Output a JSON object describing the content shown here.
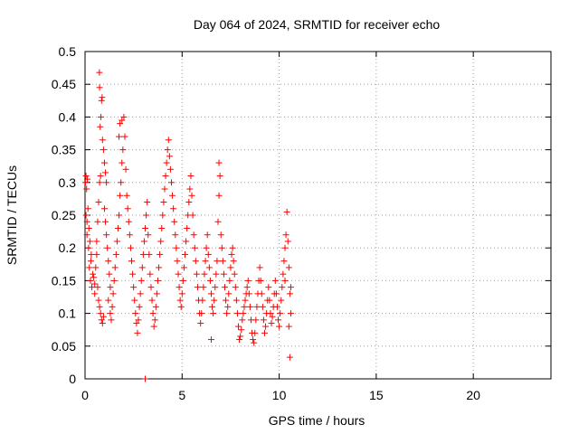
{
  "chart_data": {
    "type": "scatter",
    "title": "Day 064 of 2024, SRMTID for receiver echo",
    "xlabel": "GPS time / hours",
    "ylabel": "SRMTID / TECUs",
    "xlim": [
      0,
      24
    ],
    "ylim": [
      0,
      0.5
    ],
    "x_ticks": [
      0,
      5,
      10,
      15,
      20
    ],
    "x_tick_labels": [
      "0",
      "5",
      "10",
      "15",
      "20"
    ],
    "y_ticks": [
      0,
      0.05,
      0.1,
      0.15,
      0.2,
      0.25,
      0.3,
      0.35,
      0.4,
      0.45,
      0.5
    ],
    "y_tick_labels": [
      "0",
      "0.05",
      "0.1",
      "0.15",
      "0.2",
      "0.25",
      "0.3",
      "0.35",
      "0.4",
      "0.45",
      "0.5"
    ],
    "grid": true,
    "marker": "plus",
    "colors": {
      "series": "#ff0000",
      "grid": "#a0a0a0",
      "axis": "#000000"
    },
    "series": [
      {
        "name": "SRMTID",
        "points": [
          [
            0.02,
            0.3
          ],
          [
            0.05,
            0.31
          ],
          [
            0.08,
            0.29
          ],
          [
            0.12,
            0.305
          ],
          [
            0.05,
            0.25
          ],
          [
            0.1,
            0.24
          ],
          [
            0.15,
            0.26
          ],
          [
            0.2,
            0.23
          ],
          [
            0.1,
            0.22
          ],
          [
            0.18,
            0.2
          ],
          [
            0.25,
            0.21
          ],
          [
            0.3,
            0.18
          ],
          [
            0.22,
            0.17
          ],
          [
            0.28,
            0.15
          ],
          [
            0.35,
            0.14
          ],
          [
            0.4,
            0.16
          ],
          [
            0.32,
            0.19
          ],
          [
            0.45,
            0.155
          ],
          [
            0.5,
            0.145
          ],
          [
            0.55,
            0.17
          ],
          [
            0.6,
            0.19
          ],
          [
            0.5,
            0.13
          ],
          [
            0.65,
            0.14
          ],
          [
            0.7,
            0.12
          ],
          [
            0.75,
            0.11
          ],
          [
            0.8,
            0.1
          ],
          [
            0.85,
            0.09
          ],
          [
            0.9,
            0.085
          ],
          [
            0.95,
            0.095
          ],
          [
            0.6,
            0.21
          ],
          [
            0.65,
            0.24
          ],
          [
            0.7,
            0.27
          ],
          [
            0.75,
            0.3
          ],
          [
            0.8,
            0.31
          ],
          [
            0.78,
            0.385
          ],
          [
            0.82,
            0.4
          ],
          [
            0.85,
            0.425
          ],
          [
            0.88,
            0.43
          ],
          [
            0.75,
            0.445
          ],
          [
            0.74,
            0.468
          ],
          [
            0.9,
            0.365
          ],
          [
            0.95,
            0.35
          ],
          [
            1.0,
            0.33
          ],
          [
            1.05,
            0.315
          ],
          [
            1.1,
            0.3
          ],
          [
            1.0,
            0.26
          ],
          [
            1.05,
            0.24
          ],
          [
            1.1,
            0.22
          ],
          [
            1.15,
            0.2
          ],
          [
            1.2,
            0.18
          ],
          [
            1.25,
            0.16
          ],
          [
            1.3,
            0.14
          ],
          [
            1.2,
            0.12
          ],
          [
            1.3,
            0.1
          ],
          [
            1.35,
            0.09
          ],
          [
            1.4,
            0.11
          ],
          [
            1.45,
            0.13
          ],
          [
            1.5,
            0.15
          ],
          [
            1.55,
            0.17
          ],
          [
            1.6,
            0.19
          ],
          [
            1.65,
            0.21
          ],
          [
            1.7,
            0.23
          ],
          [
            1.75,
            0.25
          ],
          [
            1.8,
            0.28
          ],
          [
            1.85,
            0.3
          ],
          [
            1.9,
            0.33
          ],
          [
            1.95,
            0.35
          ],
          [
            1.75,
            0.37
          ],
          [
            1.8,
            0.39
          ],
          [
            1.9,
            0.395
          ],
          [
            2.0,
            0.4
          ],
          [
            2.05,
            0.37
          ],
          [
            2.1,
            0.32
          ],
          [
            2.15,
            0.28
          ],
          [
            2.2,
            0.26
          ],
          [
            2.25,
            0.24
          ],
          [
            2.3,
            0.22
          ],
          [
            2.35,
            0.2
          ],
          [
            2.4,
            0.18
          ],
          [
            2.45,
            0.16
          ],
          [
            2.5,
            0.14
          ],
          [
            2.55,
            0.12
          ],
          [
            2.6,
            0.1
          ],
          [
            2.65,
            0.085
          ],
          [
            2.7,
            0.07
          ],
          [
            2.75,
            0.09
          ],
          [
            2.8,
            0.11
          ],
          [
            2.85,
            0.13
          ],
          [
            2.9,
            0.15
          ],
          [
            2.95,
            0.17
          ],
          [
            3.0,
            0.19
          ],
          [
            3.05,
            0.21
          ],
          [
            3.1,
            0.23
          ],
          [
            3.15,
            0.25
          ],
          [
            3.2,
            0.27
          ],
          [
            3.25,
            0.22
          ],
          [
            3.3,
            0.19
          ],
          [
            3.35,
            0.16
          ],
          [
            3.4,
            0.14
          ],
          [
            3.45,
            0.12
          ],
          [
            3.5,
            0.1
          ],
          [
            3.55,
            0.08
          ],
          [
            3.6,
            0.09
          ],
          [
            3.65,
            0.11
          ],
          [
            3.7,
            0.13
          ],
          [
            3.75,
            0.15
          ],
          [
            3.8,
            0.17
          ],
          [
            3.85,
            0.19
          ],
          [
            3.9,
            0.21
          ],
          [
            3.95,
            0.23
          ],
          [
            4.0,
            0.25
          ],
          [
            4.05,
            0.27
          ],
          [
            4.1,
            0.29
          ],
          [
            4.15,
            0.31
          ],
          [
            4.2,
            0.33
          ],
          [
            4.25,
            0.35
          ],
          [
            4.3,
            0.365
          ],
          [
            4.35,
            0.34
          ],
          [
            4.4,
            0.32
          ],
          [
            4.45,
            0.3
          ],
          [
            4.5,
            0.28
          ],
          [
            4.55,
            0.26
          ],
          [
            4.6,
            0.24
          ],
          [
            4.65,
            0.22
          ],
          [
            4.7,
            0.2
          ],
          [
            4.75,
            0.18
          ],
          [
            4.8,
            0.16
          ],
          [
            4.85,
            0.14
          ],
          [
            4.9,
            0.12
          ],
          [
            4.95,
            0.11
          ],
          [
            5.0,
            0.13
          ],
          [
            5.05,
            0.15
          ],
          [
            5.1,
            0.17
          ],
          [
            5.15,
            0.19
          ],
          [
            5.2,
            0.21
          ],
          [
            5.25,
            0.23
          ],
          [
            5.3,
            0.25
          ],
          [
            5.35,
            0.27
          ],
          [
            5.4,
            0.29
          ],
          [
            5.45,
            0.31
          ],
          [
            5.5,
            0.28
          ],
          [
            5.55,
            0.25
          ],
          [
            5.6,
            0.22
          ],
          [
            5.65,
            0.2
          ],
          [
            5.7,
            0.18
          ],
          [
            5.75,
            0.16
          ],
          [
            5.8,
            0.14
          ],
          [
            5.85,
            0.12
          ],
          [
            5.9,
            0.1
          ],
          [
            5.95,
            0.085
          ],
          [
            6.0,
            0.1
          ],
          [
            6.05,
            0.12
          ],
          [
            6.1,
            0.14
          ],
          [
            6.15,
            0.16
          ],
          [
            6.2,
            0.18
          ],
          [
            6.25,
            0.2
          ],
          [
            6.3,
            0.22
          ],
          [
            6.35,
            0.19
          ],
          [
            6.4,
            0.17
          ],
          [
            6.45,
            0.15
          ],
          [
            6.5,
            0.13
          ],
          [
            6.55,
            0.11
          ],
          [
            6.5,
            0.06
          ],
          [
            6.6,
            0.1
          ],
          [
            6.65,
            0.12
          ],
          [
            6.7,
            0.14
          ],
          [
            6.75,
            0.16
          ],
          [
            6.8,
            0.18
          ],
          [
            6.85,
            0.24
          ],
          [
            6.9,
            0.28
          ],
          [
            6.95,
            0.31
          ],
          [
            6.9,
            0.33
          ],
          [
            7.0,
            0.22
          ],
          [
            7.05,
            0.2
          ],
          [
            7.1,
            0.18
          ],
          [
            7.15,
            0.16
          ],
          [
            7.2,
            0.14
          ],
          [
            7.25,
            0.12
          ],
          [
            7.3,
            0.1
          ],
          [
            7.35,
            0.11
          ],
          [
            7.4,
            0.13
          ],
          [
            7.45,
            0.15
          ],
          [
            7.5,
            0.17
          ],
          [
            7.55,
            0.19
          ],
          [
            7.6,
            0.2
          ],
          [
            7.65,
            0.18
          ],
          [
            7.7,
            0.16
          ],
          [
            7.75,
            0.14
          ],
          [
            7.8,
            0.12
          ],
          [
            7.85,
            0.1
          ],
          [
            7.9,
            0.08
          ],
          [
            7.95,
            0.06
          ],
          [
            8.0,
            0.065
          ],
          [
            8.05,
            0.075
          ],
          [
            8.1,
            0.09
          ],
          [
            8.15,
            0.1
          ],
          [
            8.2,
            0.11
          ],
          [
            8.25,
            0.12
          ],
          [
            8.3,
            0.13
          ],
          [
            8.35,
            0.14
          ],
          [
            8.4,
            0.15
          ],
          [
            8.45,
            0.13
          ],
          [
            8.5,
            0.11
          ],
          [
            8.55,
            0.09
          ],
          [
            8.6,
            0.07
          ],
          [
            8.65,
            0.06
          ],
          [
            8.7,
            0.055
          ],
          [
            8.75,
            0.07
          ],
          [
            8.8,
            0.09
          ],
          [
            8.85,
            0.11
          ],
          [
            8.9,
            0.13
          ],
          [
            8.95,
            0.15
          ],
          [
            9.0,
            0.17
          ],
          [
            9.05,
            0.15
          ],
          [
            9.1,
            0.13
          ],
          [
            9.15,
            0.11
          ],
          [
            9.2,
            0.09
          ],
          [
            9.25,
            0.07
          ],
          [
            9.3,
            0.08
          ],
          [
            9.35,
            0.1
          ],
          [
            9.4,
            0.12
          ],
          [
            9.45,
            0.14
          ],
          [
            9.5,
            0.12
          ],
          [
            9.55,
            0.1
          ],
          [
            9.6,
            0.085
          ],
          [
            9.65,
            0.095
          ],
          [
            9.7,
            0.11
          ],
          [
            9.75,
            0.13
          ],
          [
            9.8,
            0.15
          ],
          [
            9.85,
            0.13
          ],
          [
            9.9,
            0.11
          ],
          [
            9.95,
            0.09
          ],
          [
            10.0,
            0.08
          ],
          [
            10.05,
            0.1
          ],
          [
            10.1,
            0.12
          ],
          [
            10.15,
            0.14
          ],
          [
            10.2,
            0.16
          ],
          [
            10.25,
            0.18
          ],
          [
            10.3,
            0.2
          ],
          [
            10.35,
            0.22
          ],
          [
            10.4,
            0.255
          ],
          [
            10.45,
            0.21
          ],
          [
            10.5,
            0.17
          ],
          [
            10.55,
            0.13
          ],
          [
            10.6,
            0.1
          ],
          [
            10.5,
            0.08
          ],
          [
            10.6,
            0.14
          ],
          [
            10.55,
            0.033
          ],
          [
            3.1,
            0.0
          ],
          [
            10.3,
            0.15
          ]
        ]
      }
    ]
  }
}
